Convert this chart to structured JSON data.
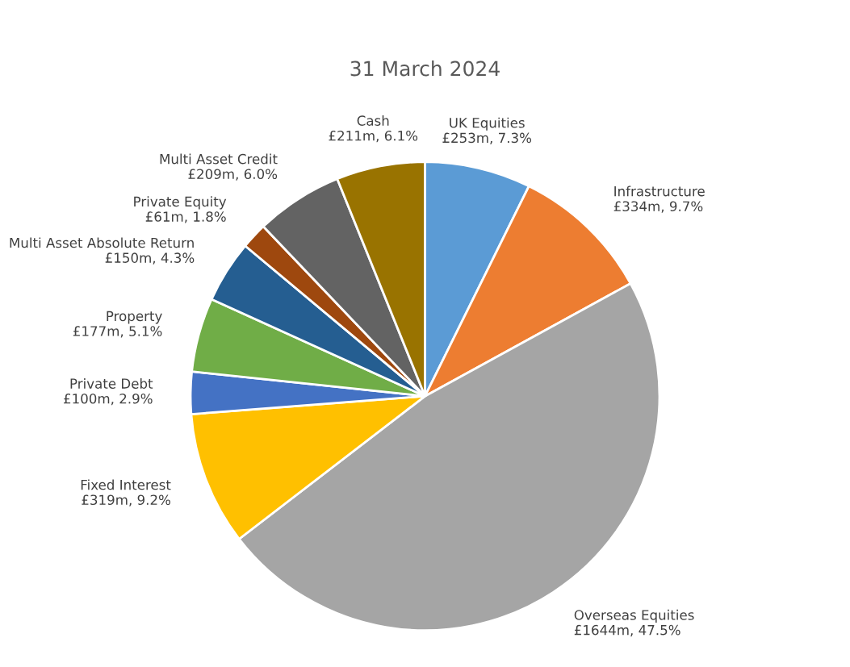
{
  "chart_data": {
    "type": "pie",
    "title": "31 March 2024",
    "categories": [
      "UK Equities",
      "Infrastructure",
      "Overseas Equities",
      "Fixed Interest",
      "Private Debt",
      "Property",
      "Multi Asset Absolute Return",
      "Private Equity",
      "Multi Asset Credit",
      "Cash"
    ],
    "values": [
      7.3,
      9.7,
      47.5,
      9.2,
      2.9,
      5.1,
      4.3,
      1.8,
      6.0,
      6.1
    ],
    "value_labels": [
      "£253m, 7.3%",
      "£334m, 9.7%",
      "£1644m, 47.5%",
      "£319m, 9.2%",
      "£100m, 2.9%",
      "£177m, 5.1%",
      "£150m, 4.3%",
      "£61m, 1.8%",
      "£209m, 6.0%",
      "£211m, 6.1%"
    ],
    "colors": [
      "#5b9bd5",
      "#ed7d31",
      "#a5a5a5",
      "#ffc000",
      "#4472c4",
      "#70ad47",
      "#255e91",
      "#9e480e",
      "#636363",
      "#997300"
    ],
    "legend": false
  }
}
